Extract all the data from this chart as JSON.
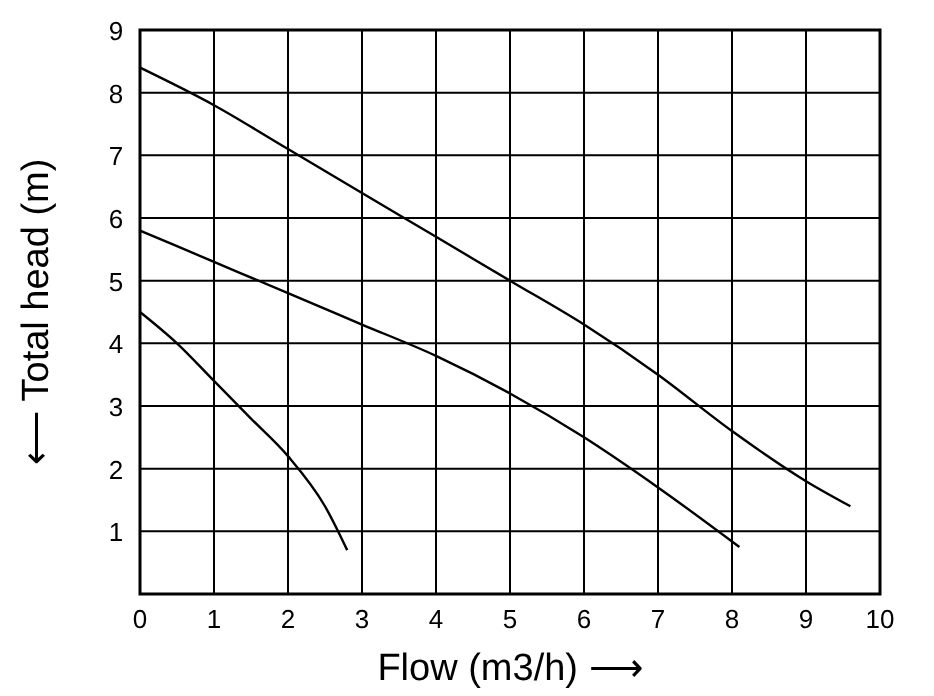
{
  "chart_data": {
    "type": "line",
    "xlabel": "Flow (m3/h)  ⟶",
    "ylabel": "⟵ Total head (m)",
    "xlim": [
      0,
      10
    ],
    "ylim": [
      0,
      9
    ],
    "xticks": [
      0,
      1,
      2,
      3,
      4,
      5,
      6,
      7,
      8,
      9,
      10
    ],
    "yticks": [
      1,
      2,
      3,
      4,
      5,
      6,
      7,
      8,
      9
    ],
    "grid": true,
    "line_style": "solid",
    "series": [
      {
        "color": "#000000",
        "x": [
          0,
          1,
          2,
          3,
          4,
          5,
          6,
          7,
          8,
          9,
          9.6
        ],
        "values": [
          8.4,
          7.8,
          7.1,
          6.4,
          5.7,
          5.0,
          4.3,
          3.5,
          2.6,
          1.8,
          1.4
        ]
      },
      {
        "color": "#000000",
        "x": [
          0,
          1,
          2,
          3,
          4,
          5,
          6,
          7,
          8.1
        ],
        "values": [
          5.8,
          5.3,
          4.8,
          4.3,
          3.8,
          3.2,
          2.5,
          1.7,
          0.75
        ]
      },
      {
        "color": "#000000",
        "x": [
          0,
          0.5,
          1,
          1.5,
          2,
          2.5,
          2.8
        ],
        "values": [
          4.5,
          4.0,
          3.4,
          2.8,
          2.2,
          1.4,
          0.7
        ]
      }
    ]
  }
}
